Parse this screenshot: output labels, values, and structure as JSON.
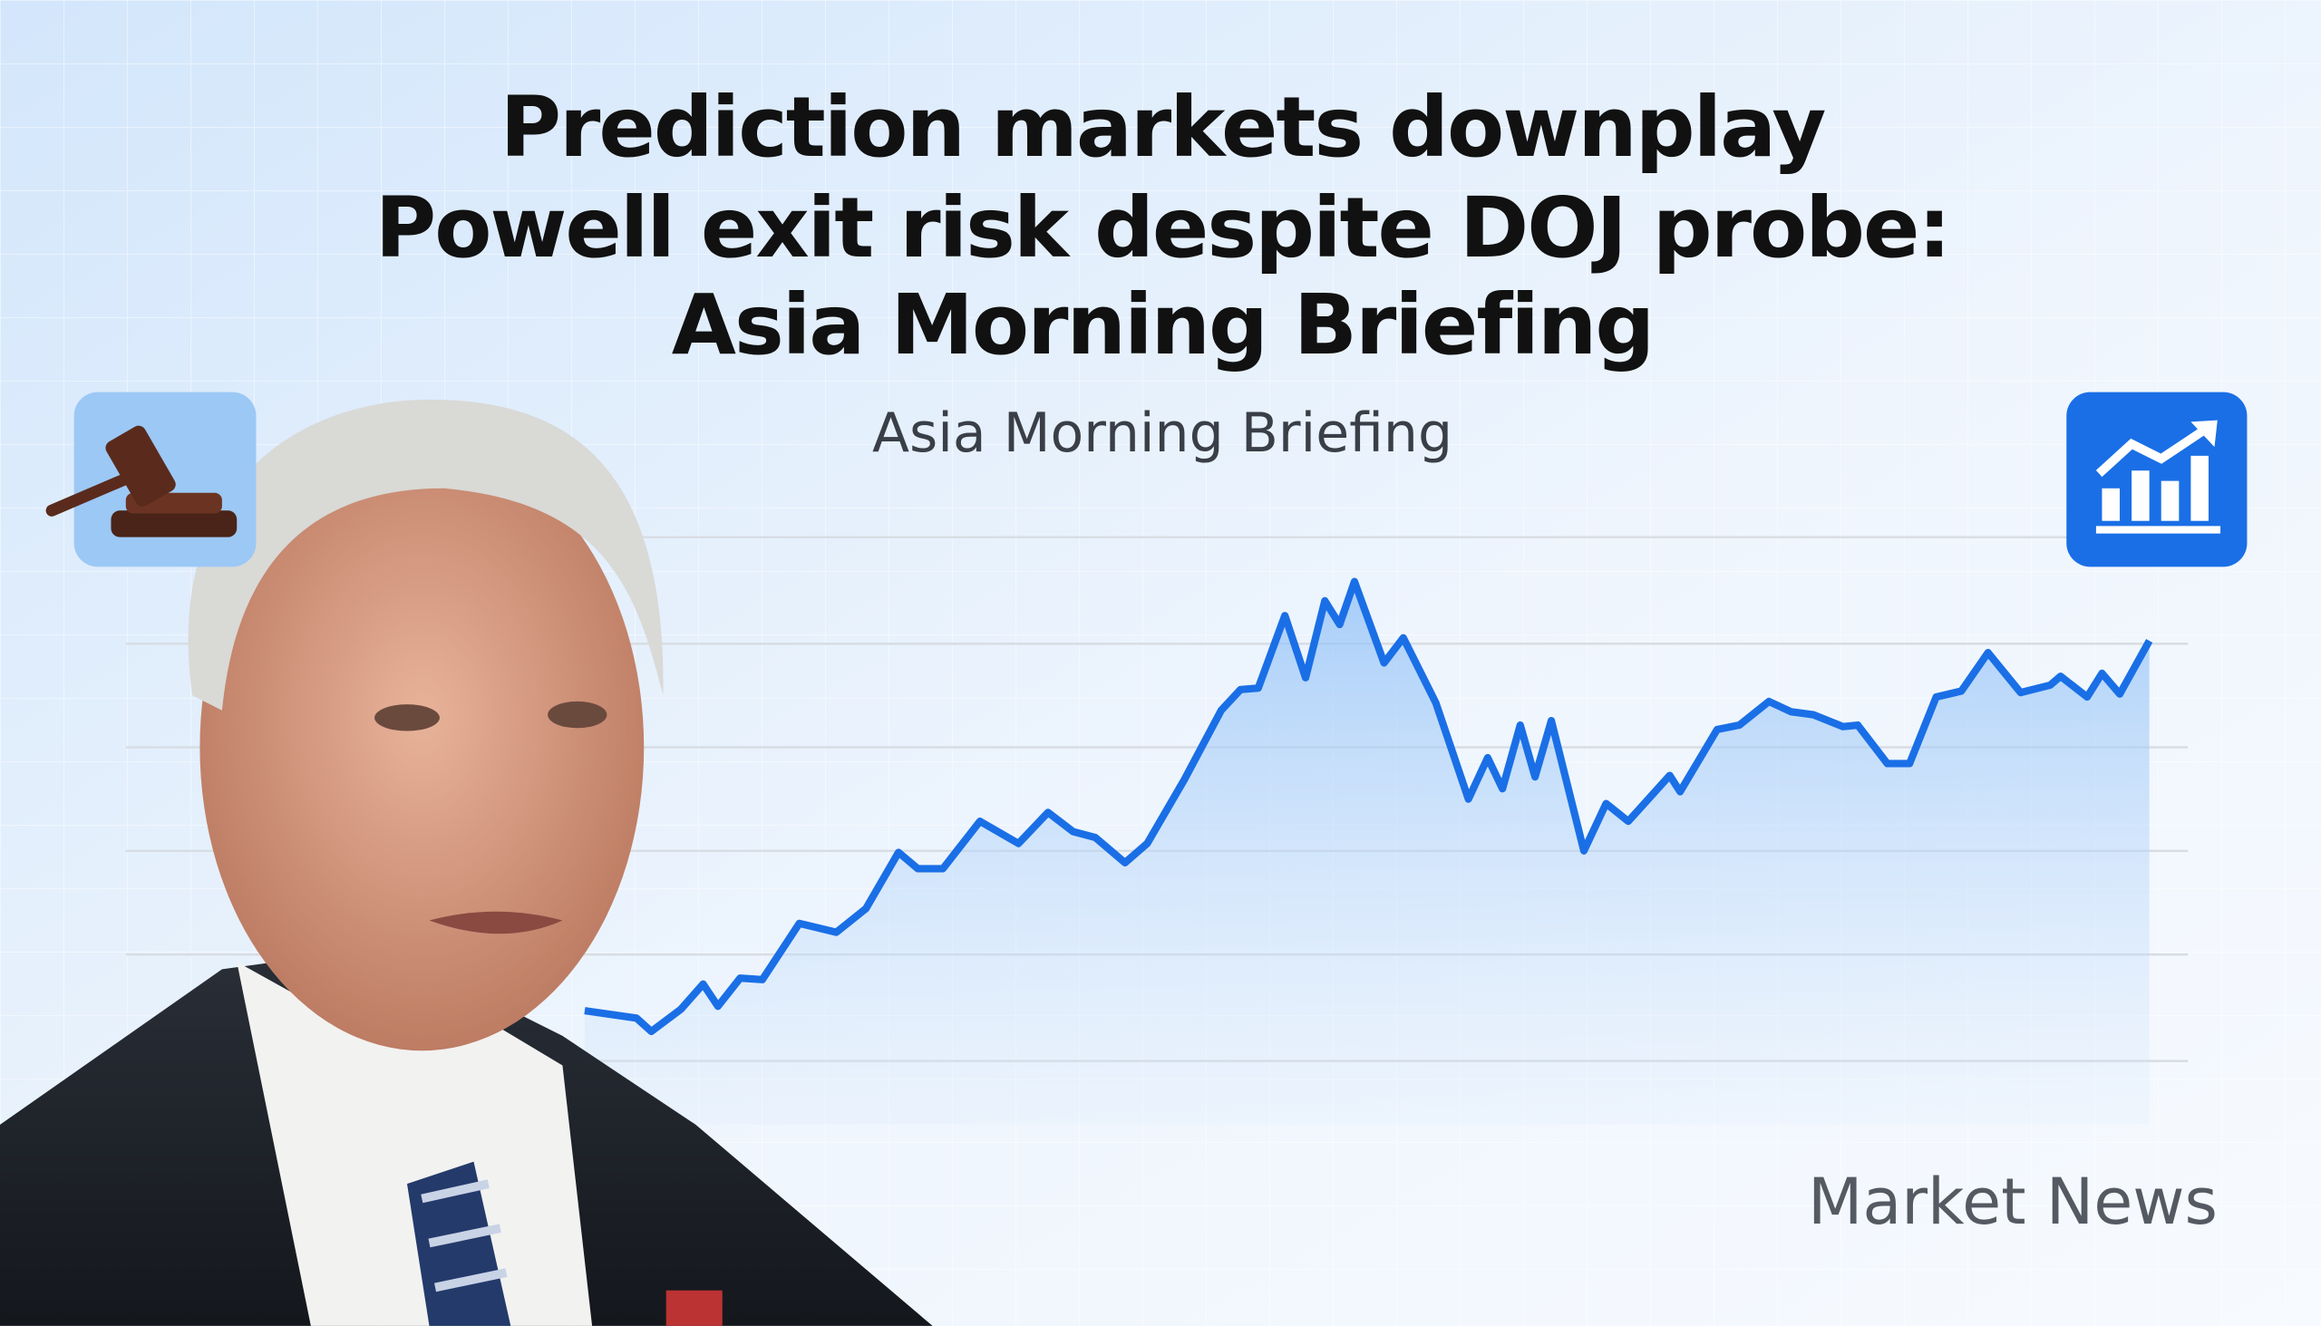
{
  "header": {
    "title_lines": [
      "Prediction markets downplay",
      "Powell exit risk despite DOJ probe:",
      "Asia Morning Briefing"
    ],
    "subtitle": "Asia Morning Briefing"
  },
  "footer": {
    "brand": "Market News"
  }
}
